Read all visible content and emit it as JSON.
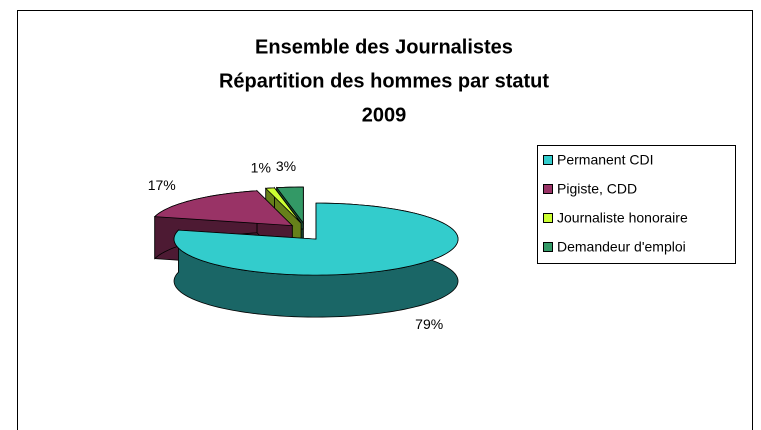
{
  "chart_data": {
    "type": "pie3d",
    "title": [
      "Ensemble des Journalistes",
      "Répartition des hommes par statut",
      "2009"
    ],
    "categories": [
      "Permanent CDI",
      "Pigiste, CDD",
      "Journaliste honoraire",
      "Demandeur d'emploi"
    ],
    "values": [
      79,
      17,
      1,
      3
    ],
    "value_labels": [
      "79%",
      "17%",
      "1%",
      "3%"
    ],
    "colors": [
      "#33cccc",
      "#993366",
      "#ccff33",
      "#339966"
    ],
    "legend": "right"
  }
}
